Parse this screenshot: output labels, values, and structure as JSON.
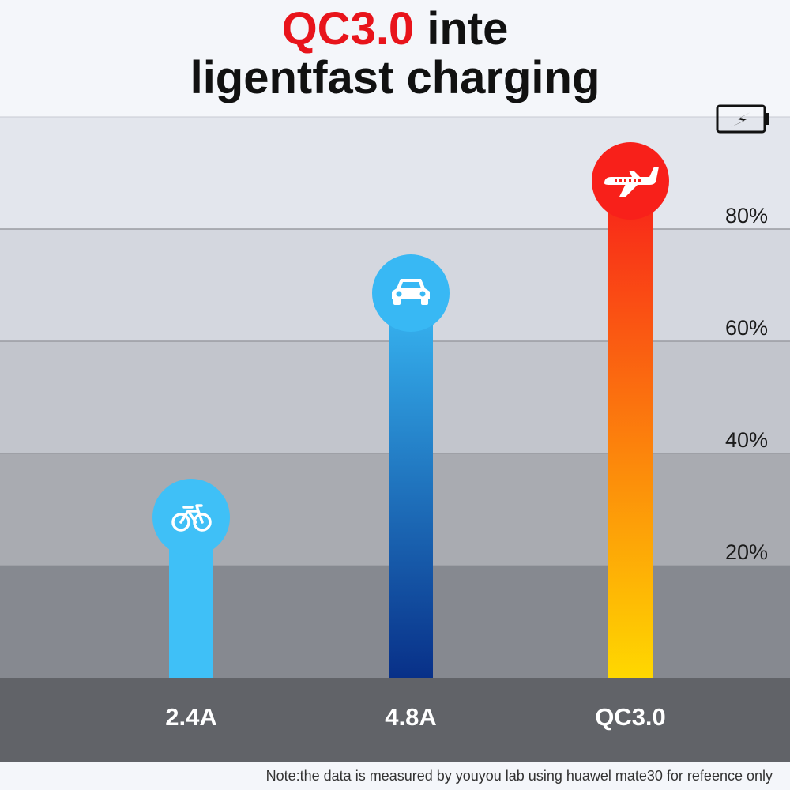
{
  "title": {
    "accent": "QC3.0",
    "rest_line1": " inte",
    "line2": "ligentfast charging"
  },
  "note": "Note:the data is measured by youyou lab using huawel mate30 for refeence only",
  "colors": {
    "band_colors": [
      "#868990",
      "#a9abb1",
      "#c2c5cc",
      "#d4d7df",
      "#e3e6ed"
    ],
    "baseline_band": "#616368",
    "bike_bar": "#3fc0f7",
    "car_bar_top": "#38b8f4",
    "car_bar_bottom": "#083088",
    "qc_bar_top": "#f8201a",
    "qc_bar_bottom": "#ffd800",
    "icon_color": "#ffffff"
  },
  "chart_data": {
    "type": "bar",
    "categories": [
      "2.4A",
      "4.8A",
      "QC3.0"
    ],
    "values": [
      30,
      70,
      90
    ],
    "icons": [
      "bicycle-icon",
      "car-icon",
      "airplane-icon"
    ],
    "ylim": [
      0,
      100
    ],
    "yticks": [
      20,
      40,
      60,
      80
    ],
    "ytick_labels": [
      "20%",
      "40%",
      "60%",
      "80%"
    ],
    "corner_icon": "battery-charging-icon",
    "grid": true
  }
}
